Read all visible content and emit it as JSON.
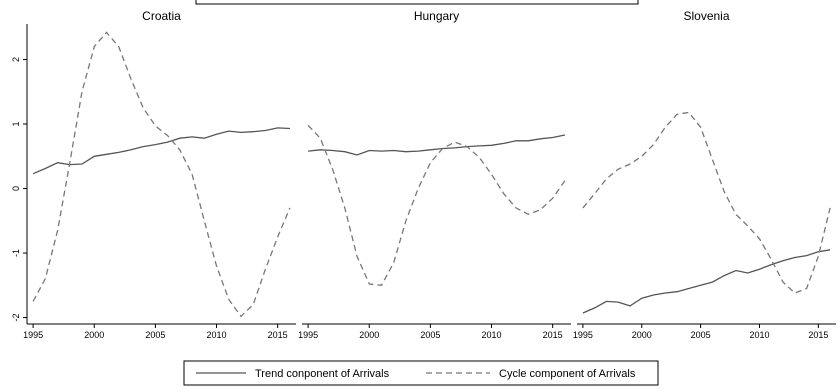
{
  "chart_data": {
    "type": "line",
    "panels": [
      {
        "title": "Croatia",
        "x": [
          1995,
          1996,
          1997,
          1998,
          1999,
          2000,
          2001,
          2002,
          2003,
          2004,
          2005,
          2006,
          2007,
          2008,
          2009,
          2010,
          2011,
          2012,
          2013,
          2014,
          2015,
          2016
        ],
        "series": [
          {
            "name": "Trend conponent of Arrivals",
            "style": "solid",
            "values": [
              0.23,
              0.31,
              0.4,
              0.37,
              0.38,
              0.5,
              0.53,
              0.56,
              0.6,
              0.65,
              0.68,
              0.72,
              0.78,
              0.8,
              0.78,
              0.84,
              0.89,
              0.87,
              0.88,
              0.9,
              0.94,
              0.93
            ]
          },
          {
            "name": "Cycle component of Arrivals",
            "style": "dashed",
            "values": [
              -1.75,
              -1.4,
              -0.65,
              0.4,
              1.5,
              2.2,
              2.42,
              2.2,
              1.7,
              1.25,
              0.97,
              0.82,
              0.6,
              0.22,
              -0.5,
              -1.2,
              -1.72,
              -1.98,
              -1.8,
              -1.25,
              -0.75,
              -0.3
            ]
          }
        ]
      },
      {
        "title": "Hungary",
        "x": [
          1995,
          1996,
          1997,
          1998,
          1999,
          2000,
          2001,
          2002,
          2003,
          2004,
          2005,
          2006,
          2007,
          2008,
          2009,
          2010,
          2011,
          2012,
          2013,
          2014,
          2015,
          2016
        ],
        "series": [
          {
            "name": "Trend conponent of Arrivals",
            "style": "solid",
            "values": [
              0.58,
              0.6,
              0.59,
              0.57,
              0.52,
              0.59,
              0.58,
              0.59,
              0.57,
              0.58,
              0.6,
              0.62,
              0.63,
              0.65,
              0.66,
              0.67,
              0.7,
              0.74,
              0.74,
              0.77,
              0.79,
              0.83
            ]
          },
          {
            "name": "Cycle component of Arrivals",
            "style": "dashed",
            "values": [
              0.98,
              0.78,
              0.3,
              -0.3,
              -1.05,
              -1.48,
              -1.5,
              -1.15,
              -0.5,
              0.0,
              0.4,
              0.62,
              0.72,
              0.65,
              0.48,
              0.22,
              -0.08,
              -0.3,
              -0.4,
              -0.33,
              -0.15,
              0.12
            ]
          }
        ]
      },
      {
        "title": "Slovenia",
        "x": [
          1995,
          1996,
          1997,
          1998,
          1999,
          2000,
          2001,
          2002,
          2003,
          2004,
          2005,
          2006,
          2007,
          2008,
          2009,
          2010,
          2011,
          2012,
          2013,
          2014,
          2015,
          2016
        ],
        "series": [
          {
            "name": "Trend conponent of Arrivals",
            "style": "solid",
            "values": [
              -1.93,
              -1.85,
              -1.75,
              -1.76,
              -1.82,
              -1.7,
              -1.65,
              -1.62,
              -1.6,
              -1.55,
              -1.5,
              -1.45,
              -1.35,
              -1.27,
              -1.31,
              -1.25,
              -1.18,
              -1.12,
              -1.07,
              -1.04,
              -0.98,
              -0.95
            ]
          },
          {
            "name": "Cycle component of Arrivals",
            "style": "dashed",
            "values": [
              -0.3,
              -0.08,
              0.15,
              0.3,
              0.38,
              0.5,
              0.68,
              0.95,
              1.15,
              1.18,
              0.95,
              0.45,
              -0.05,
              -0.4,
              -0.58,
              -0.78,
              -1.1,
              -1.45,
              -1.62,
              -1.55,
              -1.05,
              -0.3
            ]
          }
        ]
      }
    ],
    "x_ticks": [
      1995,
      2000,
      2005,
      2010,
      2015
    ],
    "x_tick_labels": [
      "1995",
      "2000",
      "2005",
      "2010",
      "2015"
    ],
    "y_ticks": [
      -2,
      -1,
      0,
      1,
      2
    ],
    "y_tick_labels": [
      "-2",
      "-1",
      "0",
      "1",
      "2"
    ],
    "xlim": [
      1994.5,
      2016.5
    ],
    "ylim": [
      -2.1,
      2.55
    ],
    "grid": false,
    "legend": {
      "position": "bottom",
      "entries": [
        {
          "label": "Trend conponent of Arrivals",
          "style": "solid"
        },
        {
          "label": "Cycle component of Arrivals",
          "style": "dashed"
        }
      ]
    },
    "colors": {
      "trend": "#555555",
      "cycle": "#777777"
    }
  }
}
